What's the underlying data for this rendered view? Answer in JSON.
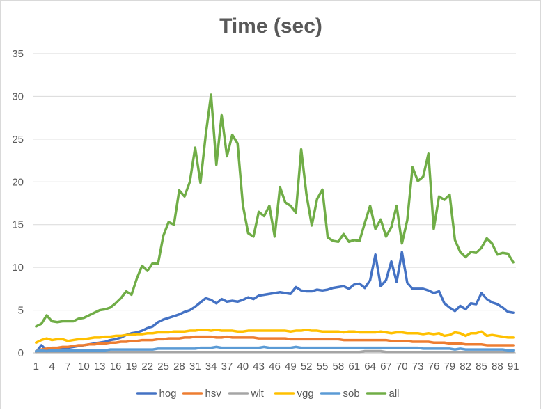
{
  "chart_data": {
    "type": "line",
    "title": "Time (sec)",
    "xlabel": "",
    "ylabel": "",
    "ylim": [
      0,
      35
    ],
    "yticks": [
      0,
      5,
      10,
      15,
      20,
      25,
      30,
      35
    ],
    "x_count": 91,
    "xtick_labels": [
      "1",
      "4",
      "7",
      "10",
      "13",
      "16",
      "19",
      "22",
      "25",
      "28",
      "31",
      "34",
      "37",
      "40",
      "43",
      "46",
      "49",
      "52",
      "55",
      "58",
      "61",
      "64",
      "67",
      "70",
      "73",
      "76",
      "79",
      "82",
      "85",
      "88",
      "91"
    ],
    "grid": true,
    "legend_position": "bottom",
    "series": [
      {
        "name": "hog",
        "color": "#4472c4",
        "values": [
          0.1,
          0.9,
          0.3,
          0.5,
          0.5,
          0.6,
          0.6,
          0.7,
          0.8,
          0.9,
          1.0,
          1.1,
          1.2,
          1.3,
          1.5,
          1.6,
          1.8,
          2.1,
          2.3,
          2.4,
          2.6,
          2.9,
          3.1,
          3.6,
          3.9,
          4.1,
          4.3,
          4.5,
          4.8,
          5.0,
          5.4,
          5.9,
          6.4,
          6.2,
          5.8,
          6.3,
          6.0,
          6.1,
          6.0,
          6.2,
          6.5,
          6.3,
          6.7,
          6.8,
          6.9,
          7.0,
          7.1,
          7.0,
          6.9,
          7.7,
          7.3,
          7.2,
          7.2,
          7.4,
          7.3,
          7.4,
          7.6,
          7.7,
          7.8,
          7.5,
          8.0,
          8.1,
          7.6,
          8.5,
          11.5,
          7.8,
          8.5,
          10.7,
          8.3,
          11.8,
          8.2,
          7.5,
          7.5,
          7.5,
          7.3,
          7.0,
          7.2,
          5.8,
          5.3,
          4.9,
          5.5,
          5.1,
          5.8,
          5.7,
          7.0,
          6.3,
          5.9,
          5.7,
          5.3,
          4.8,
          4.7
        ]
      },
      {
        "name": "hsv",
        "color": "#ed7d31",
        "values": [
          0.2,
          0.4,
          0.5,
          0.6,
          0.6,
          0.7,
          0.7,
          0.8,
          0.9,
          0.9,
          1.0,
          1.0,
          1.1,
          1.1,
          1.2,
          1.2,
          1.3,
          1.3,
          1.4,
          1.4,
          1.5,
          1.5,
          1.5,
          1.6,
          1.6,
          1.7,
          1.7,
          1.7,
          1.8,
          1.8,
          1.9,
          1.9,
          1.9,
          1.9,
          1.8,
          1.8,
          1.9,
          1.8,
          1.8,
          1.8,
          1.8,
          1.8,
          1.7,
          1.7,
          1.7,
          1.7,
          1.7,
          1.7,
          1.6,
          1.6,
          1.6,
          1.6,
          1.6,
          1.6,
          1.6,
          1.6,
          1.6,
          1.6,
          1.5,
          1.5,
          1.5,
          1.5,
          1.5,
          1.5,
          1.5,
          1.5,
          1.5,
          1.4,
          1.4,
          1.4,
          1.4,
          1.3,
          1.3,
          1.3,
          1.3,
          1.2,
          1.2,
          1.2,
          1.1,
          1.1,
          1.1,
          1.0,
          1.0,
          1.0,
          1.0,
          0.9,
          0.9,
          0.9,
          0.9,
          0.9,
          0.9
        ]
      },
      {
        "name": "wlt",
        "color": "#a5a5a5",
        "values": [
          0.1,
          0.1,
          0.1,
          0.1,
          0.1,
          0.1,
          0.1,
          0.1,
          0.1,
          0.1,
          0.1,
          0.1,
          0.1,
          0.1,
          0.1,
          0.1,
          0.1,
          0.1,
          0.1,
          0.1,
          0.1,
          0.1,
          0.1,
          0.1,
          0.1,
          0.1,
          0.1,
          0.1,
          0.1,
          0.1,
          0.1,
          0.1,
          0.1,
          0.1,
          0.1,
          0.1,
          0.1,
          0.1,
          0.1,
          0.1,
          0.1,
          0.1,
          0.1,
          0.1,
          0.1,
          0.1,
          0.1,
          0.1,
          0.1,
          0.1,
          0.1,
          0.1,
          0.1,
          0.1,
          0.1,
          0.1,
          0.1,
          0.1,
          0.1,
          0.1,
          0.1,
          0.1,
          0.2,
          0.2,
          0.2,
          0.2,
          0.1,
          0.1,
          0.1,
          0.1,
          0.1,
          0.1,
          0.1,
          0.1,
          0.1,
          0.1,
          0.1,
          0.1,
          0.1,
          0.1,
          0.1,
          0.1,
          0.1,
          0.1,
          0.1,
          0.1,
          0.1,
          0.1,
          0.1,
          0.1,
          0.1
        ]
      },
      {
        "name": "vgg",
        "color": "#ffc000",
        "values": [
          1.2,
          1.5,
          1.7,
          1.5,
          1.6,
          1.6,
          1.4,
          1.5,
          1.6,
          1.6,
          1.7,
          1.8,
          1.8,
          1.9,
          1.9,
          2.0,
          2.0,
          2.1,
          2.1,
          2.2,
          2.2,
          2.3,
          2.3,
          2.4,
          2.4,
          2.4,
          2.5,
          2.5,
          2.5,
          2.6,
          2.6,
          2.7,
          2.7,
          2.6,
          2.7,
          2.6,
          2.6,
          2.6,
          2.5,
          2.5,
          2.6,
          2.6,
          2.6,
          2.6,
          2.6,
          2.6,
          2.6,
          2.6,
          2.5,
          2.6,
          2.6,
          2.7,
          2.6,
          2.6,
          2.5,
          2.5,
          2.5,
          2.5,
          2.4,
          2.5,
          2.5,
          2.4,
          2.4,
          2.4,
          2.4,
          2.5,
          2.4,
          2.3,
          2.4,
          2.4,
          2.3,
          2.3,
          2.3,
          2.2,
          2.3,
          2.2,
          2.3,
          2.0,
          2.1,
          2.4,
          2.3,
          2.0,
          2.3,
          2.3,
          2.5,
          2.0,
          2.1,
          2.0,
          1.9,
          1.8,
          1.8
        ]
      },
      {
        "name": "sob",
        "color": "#5b9bd5",
        "values": [
          0.2,
          0.3,
          0.2,
          0.3,
          0.3,
          0.3,
          0.3,
          0.3,
          0.3,
          0.3,
          0.3,
          0.3,
          0.3,
          0.3,
          0.4,
          0.4,
          0.4,
          0.4,
          0.4,
          0.4,
          0.4,
          0.4,
          0.4,
          0.5,
          0.5,
          0.5,
          0.5,
          0.5,
          0.5,
          0.5,
          0.5,
          0.6,
          0.6,
          0.6,
          0.7,
          0.6,
          0.6,
          0.6,
          0.6,
          0.6,
          0.6,
          0.6,
          0.6,
          0.7,
          0.6,
          0.6,
          0.6,
          0.6,
          0.6,
          0.7,
          0.6,
          0.6,
          0.6,
          0.6,
          0.6,
          0.6,
          0.6,
          0.6,
          0.6,
          0.6,
          0.6,
          0.6,
          0.6,
          0.6,
          0.6,
          0.6,
          0.6,
          0.6,
          0.6,
          0.6,
          0.6,
          0.6,
          0.6,
          0.5,
          0.5,
          0.5,
          0.5,
          0.5,
          0.5,
          0.4,
          0.5,
          0.4,
          0.4,
          0.4,
          0.4,
          0.4,
          0.4,
          0.4,
          0.4,
          0.3,
          0.3
        ]
      },
      {
        "name": "all",
        "color": "#70ad47",
        "values": [
          3.1,
          3.4,
          4.4,
          3.7,
          3.6,
          3.7,
          3.7,
          3.7,
          4.0,
          4.1,
          4.4,
          4.7,
          5.0,
          5.1,
          5.3,
          5.8,
          6.4,
          7.2,
          6.8,
          8.7,
          10.2,
          9.6,
          10.5,
          10.4,
          13.7,
          15.3,
          15.0,
          19.0,
          18.3,
          20.0,
          24.0,
          19.9,
          25.5,
          30.2,
          22.0,
          27.8,
          23.0,
          25.5,
          24.5,
          17.3,
          14.0,
          13.6,
          16.5,
          16.0,
          17.2,
          13.6,
          19.4,
          17.6,
          17.2,
          16.4,
          23.8,
          18.5,
          14.9,
          18.0,
          19.1,
          13.5,
          13.1,
          13.0,
          13.9,
          13.0,
          13.2,
          13.1,
          15.2,
          17.2,
          14.5,
          15.6,
          13.6,
          14.7,
          17.2,
          12.8,
          15.5,
          21.7,
          20.1,
          20.6,
          23.3,
          14.5,
          18.3,
          17.9,
          18.5,
          13.2,
          11.8,
          11.2,
          11.8,
          11.7,
          12.3,
          13.4,
          12.8,
          11.5,
          11.7,
          11.6,
          10.6
        ]
      }
    ]
  }
}
